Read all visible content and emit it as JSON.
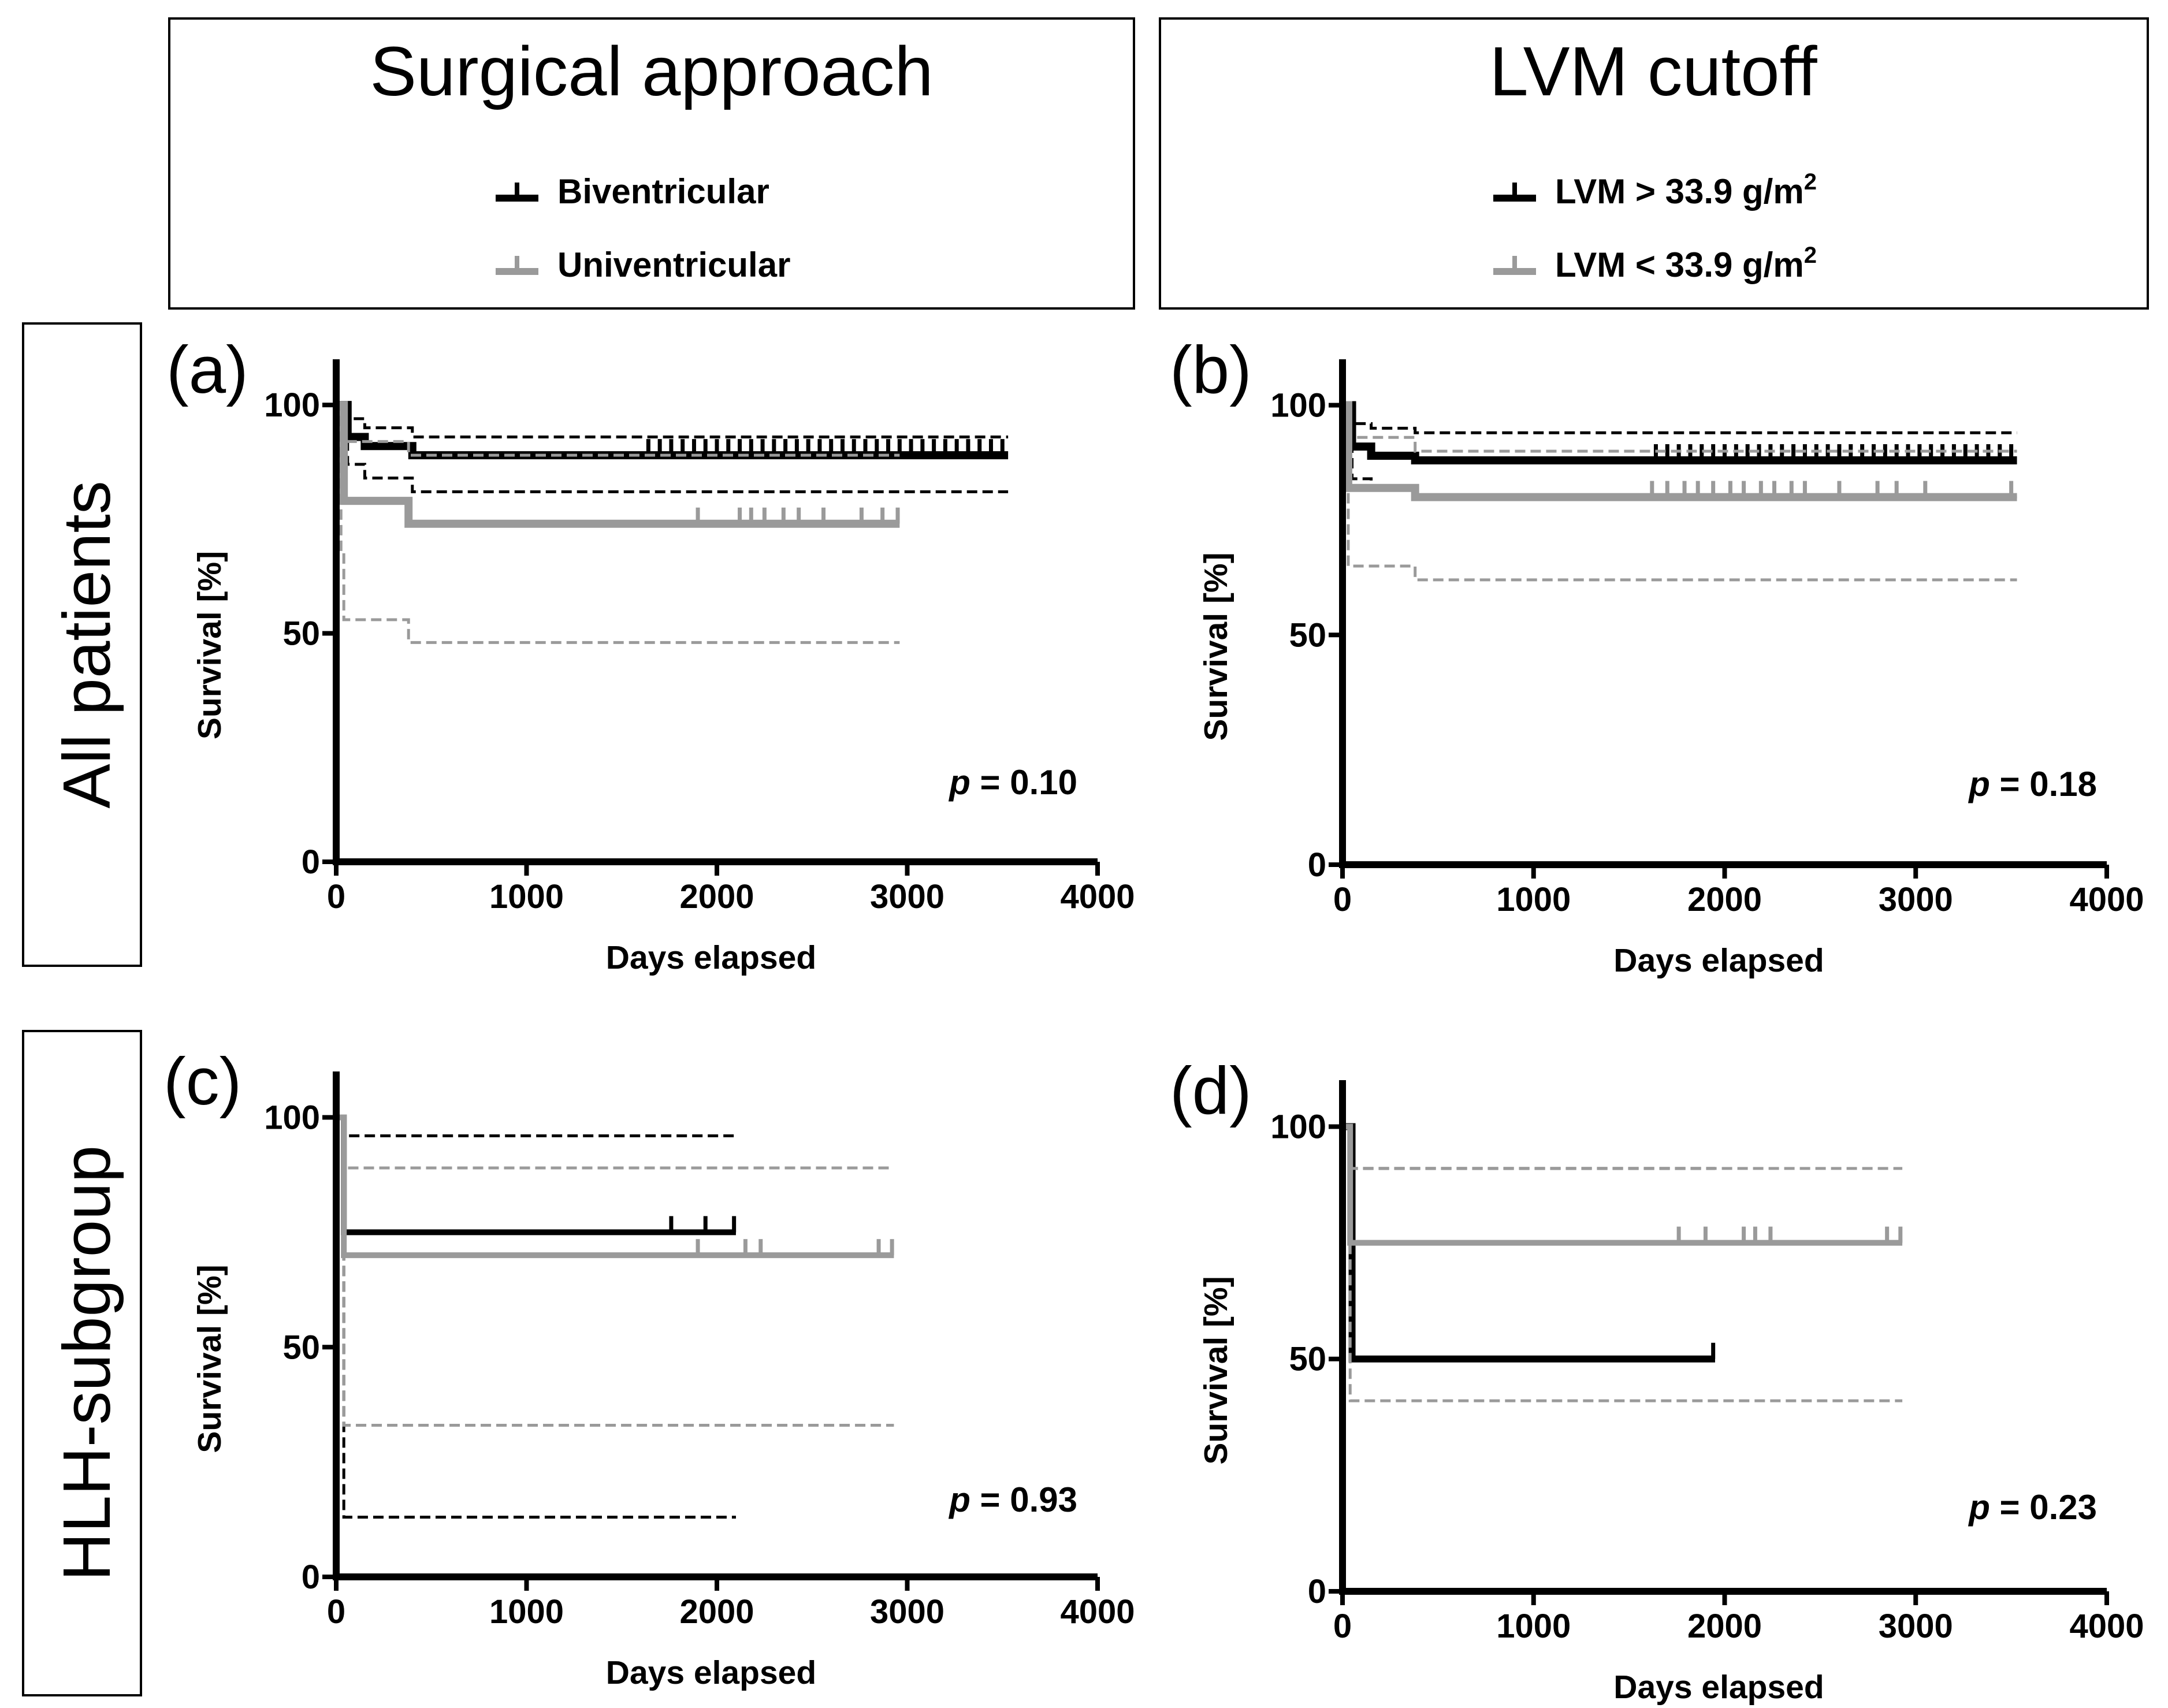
{
  "column_headers": [
    {
      "title": "Surgical approach",
      "legend": [
        {
          "label": "Biventricular",
          "color": "#000000"
        },
        {
          "label": "Univentricular",
          "color": "#9a9a9a"
        }
      ]
    },
    {
      "title": "LVM cutoff",
      "legend": [
        {
          "label": "LVM > 33.9 g/m",
          "sup": "2",
          "color": "#000000"
        },
        {
          "label": "LVM < 33.9 g/m",
          "sup": "2",
          "color": "#9a9a9a"
        }
      ]
    }
  ],
  "row_headers": [
    "All patients",
    "HLH-subgroup"
  ],
  "chart_data": [
    {
      "panel": "(a)",
      "type": "line",
      "step": true,
      "xlabel": "Days elapsed",
      "ylabel": "Survival [%]",
      "xlim": [
        0,
        4000
      ],
      "ylim": [
        0,
        110
      ],
      "xticks": [
        0,
        1000,
        2000,
        3000,
        4000
      ],
      "yticks": [
        0,
        50,
        100
      ],
      "p_prefix": "p",
      "p_suffix": " = 0.10",
      "series": [
        {
          "name": "Biventricular",
          "color": "#000000",
          "style": "solid",
          "width": 14,
          "x": [
            0,
            60,
            150,
            400,
            3530
          ],
          "y": [
            100,
            93,
            91,
            89,
            89
          ],
          "censor_x": [
            1640,
            1700,
            1760,
            1820,
            1880,
            1940,
            2000,
            2060,
            2120,
            2180,
            2240,
            2300,
            2360,
            2420,
            2480,
            2540,
            2600,
            2660,
            2720,
            2780,
            2840,
            2900,
            2960,
            3020,
            3080,
            3140,
            3200,
            3260,
            3320,
            3380,
            3440,
            3500
          ]
        },
        {
          "color": "#000000",
          "style": "dashed",
          "width": 5,
          "x": [
            0,
            60,
            150,
            400,
            3530
          ],
          "y": [
            100,
            97,
            95,
            93,
            93
          ]
        },
        {
          "color": "#000000",
          "style": "dashed",
          "width": 5,
          "x": [
            0,
            60,
            150,
            400,
            3530
          ],
          "y": [
            100,
            87,
            84,
            81,
            81
          ]
        },
        {
          "name": "Univentricular",
          "color": "#9a9a9a",
          "style": "solid",
          "width": 14,
          "x": [
            0,
            40,
            380,
            2960
          ],
          "y": [
            100,
            79,
            74,
            74
          ],
          "censor_x": [
            1900,
            2120,
            2180,
            2250,
            2350,
            2430,
            2560,
            2760,
            2870,
            2950
          ]
        },
        {
          "color": "#9a9a9a",
          "style": "dashed",
          "width": 5,
          "x": [
            0,
            40,
            380,
            2960
          ],
          "y": [
            100,
            92,
            89,
            89
          ]
        },
        {
          "color": "#9a9a9a",
          "style": "dashed",
          "width": 5,
          "x": [
            0,
            25,
            40,
            380,
            2960
          ],
          "y": [
            100,
            68,
            53,
            48,
            48
          ]
        }
      ]
    },
    {
      "panel": "(b)",
      "type": "line",
      "step": true,
      "xlabel": "Days elapsed",
      "ylabel": "Survival [%]",
      "xlim": [
        0,
        4000
      ],
      "ylim": [
        0,
        110
      ],
      "xticks": [
        0,
        1000,
        2000,
        3000,
        4000
      ],
      "yticks": [
        0,
        50,
        100
      ],
      "p_prefix": "p",
      "p_suffix": " = 0.18",
      "series": [
        {
          "name": "LVM > 33.9 g/m2",
          "color": "#000000",
          "style": "solid",
          "width": 14,
          "x": [
            0,
            50,
            150,
            380,
            3530
          ],
          "y": [
            100,
            91,
            89,
            88,
            88
          ],
          "censor_x": [
            1640,
            1700,
            1760,
            1820,
            1880,
            1940,
            2000,
            2060,
            2120,
            2180,
            2240,
            2300,
            2360,
            2420,
            2480,
            2540,
            2600,
            2660,
            2720,
            2780,
            2840,
            2900,
            2960,
            3020,
            3080,
            3140,
            3200,
            3260,
            3320,
            3380,
            3440,
            3500
          ]
        },
        {
          "color": "#000000",
          "style": "dashed",
          "width": 5,
          "x": [
            0,
            50,
            150,
            380,
            3530
          ],
          "y": [
            100,
            96,
            95,
            94,
            94
          ]
        },
        {
          "color": "#000000",
          "style": "dashed",
          "width": 5,
          "x": [
            0,
            50,
            150,
            380,
            3530
          ],
          "y": [
            100,
            84,
            82,
            80,
            80
          ]
        },
        {
          "name": "LVM < 33.9 g/m2",
          "color": "#9a9a9a",
          "style": "solid",
          "width": 14,
          "x": [
            0,
            30,
            380,
            3530
          ],
          "y": [
            100,
            82,
            80,
            80
          ],
          "censor_x": [
            1620,
            1700,
            1790,
            1860,
            1940,
            2030,
            2100,
            2190,
            2260,
            2350,
            2420,
            2600,
            2800,
            2900,
            3050,
            3500
          ]
        },
        {
          "color": "#9a9a9a",
          "style": "dashed",
          "width": 5,
          "x": [
            0,
            30,
            380,
            3530
          ],
          "y": [
            100,
            93,
            90,
            90
          ]
        },
        {
          "color": "#9a9a9a",
          "style": "dashed",
          "width": 5,
          "x": [
            0,
            30,
            380,
            3530
          ],
          "y": [
            100,
            65,
            62,
            62
          ]
        }
      ]
    },
    {
      "panel": "(c)",
      "type": "line",
      "step": true,
      "xlabel": "Days elapsed",
      "ylabel": "Survival [%]",
      "xlim": [
        0,
        4000
      ],
      "ylim": [
        0,
        110
      ],
      "xticks": [
        0,
        1000,
        2000,
        3000,
        4000
      ],
      "yticks": [
        0,
        50,
        100
      ],
      "p_prefix": "p",
      "p_suffix": " = 0.93",
      "series": [
        {
          "name": "Biventricular",
          "color": "#000000",
          "style": "solid",
          "width": 10,
          "x": [
            0,
            40,
            2100
          ],
          "y": [
            100,
            75,
            75
          ],
          "censor_x": [
            1760,
            1940,
            2090
          ]
        },
        {
          "color": "#000000",
          "style": "dashed",
          "width": 5,
          "x": [
            0,
            40,
            2100
          ],
          "y": [
            100,
            96,
            96
          ]
        },
        {
          "color": "#000000",
          "style": "dashed",
          "width": 5,
          "x": [
            0,
            40,
            2100
          ],
          "y": [
            100,
            13,
            13
          ]
        },
        {
          "name": "Univentricular",
          "color": "#9a9a9a",
          "style": "solid",
          "width": 10,
          "x": [
            0,
            40,
            2930
          ],
          "y": [
            100,
            70,
            70
          ],
          "censor_x": [
            1900,
            2150,
            2230,
            2850,
            2920
          ]
        },
        {
          "color": "#9a9a9a",
          "style": "dashed",
          "width": 5,
          "x": [
            0,
            40,
            2930
          ],
          "y": [
            100,
            89,
            89
          ]
        },
        {
          "color": "#9a9a9a",
          "style": "dashed",
          "width": 5,
          "x": [
            0,
            40,
            2930
          ],
          "y": [
            100,
            33,
            33
          ]
        }
      ]
    },
    {
      "panel": "(d)",
      "type": "line",
      "step": true,
      "xlabel": "Days elapsed",
      "ylabel": "Survival [%]",
      "xlim": [
        0,
        4000
      ],
      "ylim": [
        0,
        110
      ],
      "xticks": [
        0,
        1000,
        2000,
        3000,
        4000
      ],
      "yticks": [
        0,
        50,
        100
      ],
      "p_prefix": "p",
      "p_suffix": " = 0.23",
      "series": [
        {
          "name": "LVM > 33.9 g/m2",
          "color": "#000000",
          "style": "solid",
          "width": 12,
          "x": [
            0,
            50,
            1950
          ],
          "y": [
            100,
            50,
            50
          ],
          "censor_x": [
            1940
          ]
        },
        {
          "color": "#000000",
          "style": "dashed",
          "width": 5,
          "x": [
            0,
            50,
            1950
          ],
          "y": [
            100,
            91,
            91
          ]
        },
        {
          "name": "LVM < 33.9 g/m2",
          "color": "#9a9a9a",
          "style": "solid",
          "width": 10,
          "x": [
            0,
            40,
            2930
          ],
          "y": [
            100,
            75,
            75
          ],
          "censor_x": [
            1760,
            1900,
            2100,
            2160,
            2240,
            2850,
            2920
          ]
        },
        {
          "color": "#9a9a9a",
          "style": "dashed",
          "width": 5,
          "x": [
            0,
            40,
            2930
          ],
          "y": [
            100,
            91,
            91
          ]
        },
        {
          "color": "#9a9a9a",
          "style": "dashed",
          "width": 5,
          "x": [
            0,
            40,
            2930
          ],
          "y": [
            100,
            41,
            41
          ]
        }
      ]
    }
  ]
}
